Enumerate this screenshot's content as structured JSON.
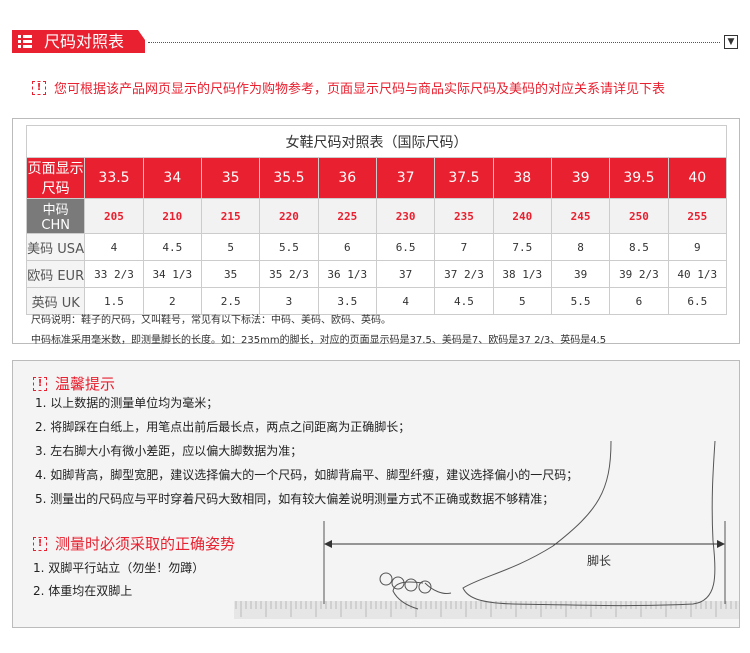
{
  "header": {
    "title": "尺码对照表",
    "collapse_icon": "chevron-down-icon"
  },
  "notice": {
    "text": "您可根据该产品网页显示的尺码作为购物参考，页面显示尺码与商品实际尺码及美码的对应关系请详见下表",
    "icon": "warning-icon"
  },
  "table": {
    "title": "女鞋尺码对照表（国际尺码）",
    "header_label": "页面显示尺码",
    "sizes": [
      "33.5",
      "34",
      "35",
      "35.5",
      "36",
      "37",
      "37.5",
      "38",
      "39",
      "39.5",
      "40"
    ],
    "rows": [
      {
        "label": "中码 CHN",
        "values": [
          "205",
          "210",
          "215",
          "220",
          "225",
          "230",
          "235",
          "240",
          "245",
          "250",
          "255"
        ]
      },
      {
        "label": "美码 USA",
        "values": [
          "4",
          "4.5",
          "5",
          "5.5",
          "6",
          "6.5",
          "7",
          "7.5",
          "8",
          "8.5",
          "9"
        ]
      },
      {
        "label": "欧码 EUR",
        "values": [
          "33 2/3",
          "34 1/3",
          "35",
          "35 2/3",
          "36 1/3",
          "37",
          "37 2/3",
          "38 1/3",
          "39",
          "39 2/3",
          "40 1/3"
        ]
      },
      {
        "label": "英码 UK",
        "values": [
          "1.5",
          "2",
          "2.5",
          "3",
          "3.5",
          "4",
          "4.5",
          "5",
          "5.5",
          "6",
          "6.5"
        ]
      }
    ],
    "notes": [
      "尺码说明：鞋子的尺码，又叫鞋号，常见有以下标法：中码、美码、欧码、英码。",
      "中码标准采用毫米数，即测量脚长的长度。如：235mm的脚长，对应的页面显示码是37.5、美码是7、欧码是37 2/3、英码是4.5"
    ]
  },
  "tips": {
    "title": "温馨提示",
    "items": [
      "1. 以上数据的测量单位均为毫米；",
      "2. 将脚踩在白纸上，用笔点出前后最长点，两点之间距离为正确脚长；",
      "3. 左右脚大小有微小差距，应以偏大脚数据为准；",
      "4. 如脚背高，脚型宽肥，建议选择偏大的一个尺码，如脚背扁平、脚型纤瘦，建议选择偏小的一尺码；",
      "5. 测量出的尺码应与平时穿着尺码大致相同，如有较大偏差说明测量方式不正确或数据不够精准；"
    ],
    "posture_title": "测量时必须采取的正确姿势",
    "posture_items": [
      "1. 双脚平行站立（勿坐！勿蹲）",
      "2. 体重均在双脚上"
    ],
    "foot_label": "脚长"
  },
  "colors": {
    "accent": "#e8202f",
    "grey_header": "#7a7a7a"
  }
}
